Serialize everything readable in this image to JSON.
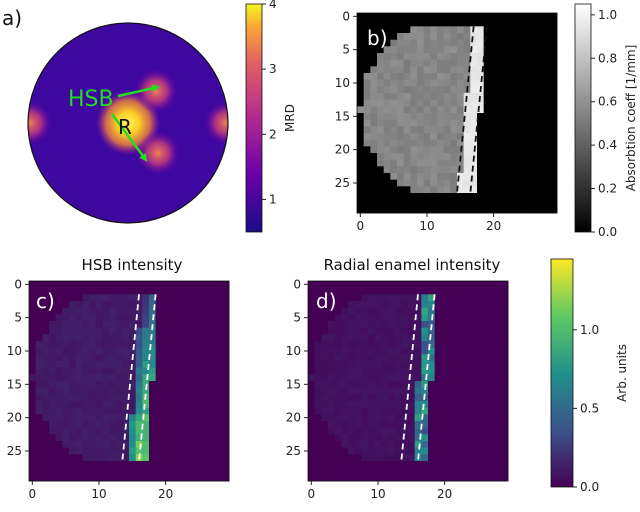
{
  "chart_data": [
    {
      "panel": "a)",
      "type": "pole-figure",
      "annotations": {
        "hsb": "HSB",
        "r": "R"
      },
      "colorbar": {
        "label": "MRD",
        "range": [
          0.5,
          4
        ],
        "ticks": [
          "1",
          "2",
          "3",
          "4"
        ],
        "colormap": "plasma"
      },
      "peaks": [
        {
          "name": "R",
          "cx": 0,
          "cy": 0,
          "value": 4.0
        },
        {
          "name": "HSB-upper",
          "cx": 0.28,
          "cy": -0.32,
          "value": 2.3
        },
        {
          "name": "HSB-lower",
          "cx": 0.3,
          "cy": 0.3,
          "value": 2.3
        },
        {
          "name": "edge-left",
          "cx": -0.98,
          "cy": 0,
          "value": 2.1
        },
        {
          "name": "edge-right",
          "cx": 0.98,
          "cy": 0,
          "value": 2.1
        }
      ]
    },
    {
      "panel": "b)",
      "type": "heatmap",
      "grid_size": 30,
      "xticks": [
        "0",
        "10",
        "20"
      ],
      "yticks": [
        "0",
        "5",
        "10",
        "15",
        "20",
        "25"
      ],
      "colorbar": {
        "label": "Absorbtion coeff [1/mm]",
        "range": [
          0,
          1.05
        ],
        "ticks": [
          "0.0",
          "0.2",
          "0.4",
          "0.6",
          "0.8",
          "1.0"
        ],
        "colormap": "gray"
      },
      "sample": {
        "y_range": [
          2,
          27
        ],
        "left_edge_at_center": 0.5,
        "center_row": 14.5,
        "right_edge_top": 19.5,
        "right_edge_bottom": 17.5
      },
      "values": {
        "background": 0.0,
        "dentine": 0.55,
        "enamel": 0.98
      },
      "dashed_lines": [
        [
          [
            17.5,
            2
          ],
          [
            15,
            27
          ]
        ],
        [
          [
            19.5,
            2
          ],
          [
            17,
            27
          ]
        ]
      ]
    },
    {
      "panel": "c)",
      "type": "heatmap",
      "title": "HSB intensity",
      "grid_size": 30,
      "xticks": [
        "0",
        "10",
        "20"
      ],
      "yticks": [
        "0",
        "5",
        "10",
        "15",
        "20",
        "25"
      ],
      "colormap": "viridis",
      "dashed_lines": [
        [
          [
            16.5,
            2
          ],
          [
            14,
            27
          ]
        ],
        [
          [
            19,
            2
          ],
          [
            16.5,
            27
          ]
        ]
      ]
    },
    {
      "panel": "d)",
      "type": "heatmap",
      "title": "Radial enamel intensity",
      "grid_size": 30,
      "xticks": [
        "0",
        "10",
        "20"
      ],
      "yticks": [
        "0",
        "5",
        "10",
        "15",
        "20",
        "25"
      ],
      "colormap": "viridis",
      "dashed_lines": [
        [
          [
            16.5,
            2
          ],
          [
            14,
            27
          ]
        ],
        [
          [
            19,
            2
          ],
          [
            16.5,
            27
          ]
        ]
      ]
    },
    {
      "panel": "shared-colorbar",
      "type": "colorbar",
      "label": "Arb. units",
      "range": [
        0,
        1.45
      ],
      "ticks": [
        "0.0",
        "0.5",
        "1.0"
      ],
      "colormap": "viridis"
    }
  ]
}
